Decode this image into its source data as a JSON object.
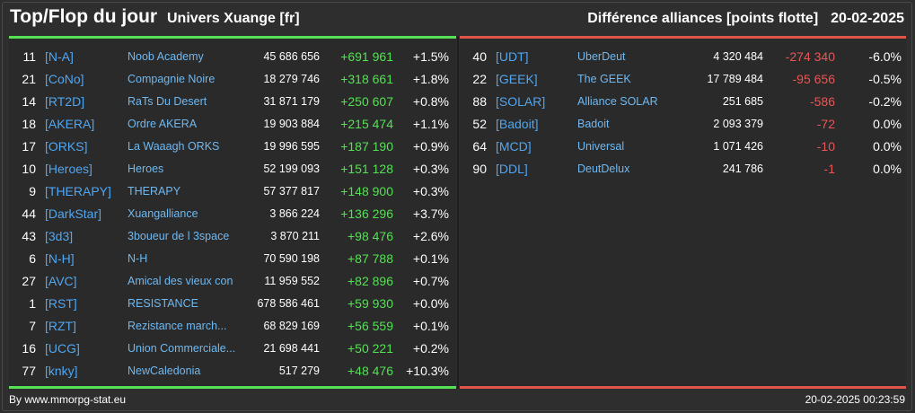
{
  "header": {
    "title": "Top/Flop du jour",
    "subtitle": "Univers Xuange [fr]",
    "right_title": "Différence alliances [points flotte]",
    "date": "20-02-2025"
  },
  "colors": {
    "positive": "#55e055",
    "negative": "#e85555",
    "tag": "#4fa6f2"
  },
  "top": [
    {
      "rank": "11",
      "tag": "[N-A]",
      "name": "Noob Academy",
      "points": "45 686 656",
      "diff": "+691 961",
      "pct": "+1.5%"
    },
    {
      "rank": "21",
      "tag": "[CoNo]",
      "name": "Compagnie Noire",
      "points": "18 279 746",
      "diff": "+318 661",
      "pct": "+1.8%"
    },
    {
      "rank": "14",
      "tag": "[RT2D]",
      "name": "RaTs Du Desert",
      "points": "31 871 179",
      "diff": "+250 607",
      "pct": "+0.8%"
    },
    {
      "rank": "18",
      "tag": "[AKERA]",
      "name": "Ordre AKERA",
      "points": "19 903 884",
      "diff": "+215 474",
      "pct": "+1.1%"
    },
    {
      "rank": "17",
      "tag": "[ORKS]",
      "name": "La Waaagh ORKS",
      "points": "19 996 595",
      "diff": "+187 190",
      "pct": "+0.9%"
    },
    {
      "rank": "10",
      "tag": "[Heroes]",
      "name": "Heroes",
      "points": "52 199 093",
      "diff": "+151 128",
      "pct": "+0.3%"
    },
    {
      "rank": "9",
      "tag": "[THERAPY]",
      "name": "THERAPY",
      "points": "57 377 817",
      "diff": "+148 900",
      "pct": "+0.3%"
    },
    {
      "rank": "44",
      "tag": "[DarkStar]",
      "name": "Xuangalliance",
      "points": "3 866 224",
      "diff": "+136 296",
      "pct": "+3.7%"
    },
    {
      "rank": "43",
      "tag": "[3d3]",
      "name": "3boueur de l 3space",
      "points": "3 870 211",
      "diff": "+98 476",
      "pct": "+2.6%"
    },
    {
      "rank": "6",
      "tag": "[N-H]",
      "name": "N-H",
      "points": "70 590 198",
      "diff": "+87 788",
      "pct": "+0.1%"
    },
    {
      "rank": "27",
      "tag": "[AVC]",
      "name": "Amical des vieux con",
      "points": "11 959 552",
      "diff": "+82 896",
      "pct": "+0.7%"
    },
    {
      "rank": "1",
      "tag": "[RST]",
      "name": "RESISTANCE",
      "points": "678 586 461",
      "diff": "+59 930",
      "pct": "+0.0%"
    },
    {
      "rank": "7",
      "tag": "[RZT]",
      "name": "Rezistance march...",
      "points": "68 829 169",
      "diff": "+56 559",
      "pct": "+0.1%"
    },
    {
      "rank": "16",
      "tag": "[UCG]",
      "name": "Union Commerciale...",
      "points": "21 698 441",
      "diff": "+50 221",
      "pct": "+0.2%"
    },
    {
      "rank": "77",
      "tag": "[knky]",
      "name": "NewCaledonia",
      "points": "517 279",
      "diff": "+48 476",
      "pct": "+10.3%"
    }
  ],
  "flop": [
    {
      "rank": "40",
      "tag": "[UDT]",
      "name": "UberDeut",
      "points": "4 320 484",
      "diff": "-274 340",
      "pct": "-6.0%"
    },
    {
      "rank": "22",
      "tag": "[GEEK]",
      "name": "The GEEK",
      "points": "17 789 484",
      "diff": "-95 656",
      "pct": "-0.5%"
    },
    {
      "rank": "88",
      "tag": "[SOLAR]",
      "name": "Alliance SOLAR",
      "points": "251 685",
      "diff": "-586",
      "pct": "-0.2%"
    },
    {
      "rank": "52",
      "tag": "[Badoit]",
      "name": "Badoit",
      "points": "2 093 379",
      "diff": "-72",
      "pct": "0.0%"
    },
    {
      "rank": "64",
      "tag": "[MCD]",
      "name": "Universal",
      "points": "1 071 426",
      "diff": "-10",
      "pct": "0.0%"
    },
    {
      "rank": "90",
      "tag": "[DDL]",
      "name": "DeutDelux",
      "points": "241 786",
      "diff": "-1",
      "pct": "0.0%"
    }
  ],
  "footer": {
    "credit": "By www.mmorpg-stat.eu",
    "timestamp": "20-02-2025 00:23:59"
  }
}
